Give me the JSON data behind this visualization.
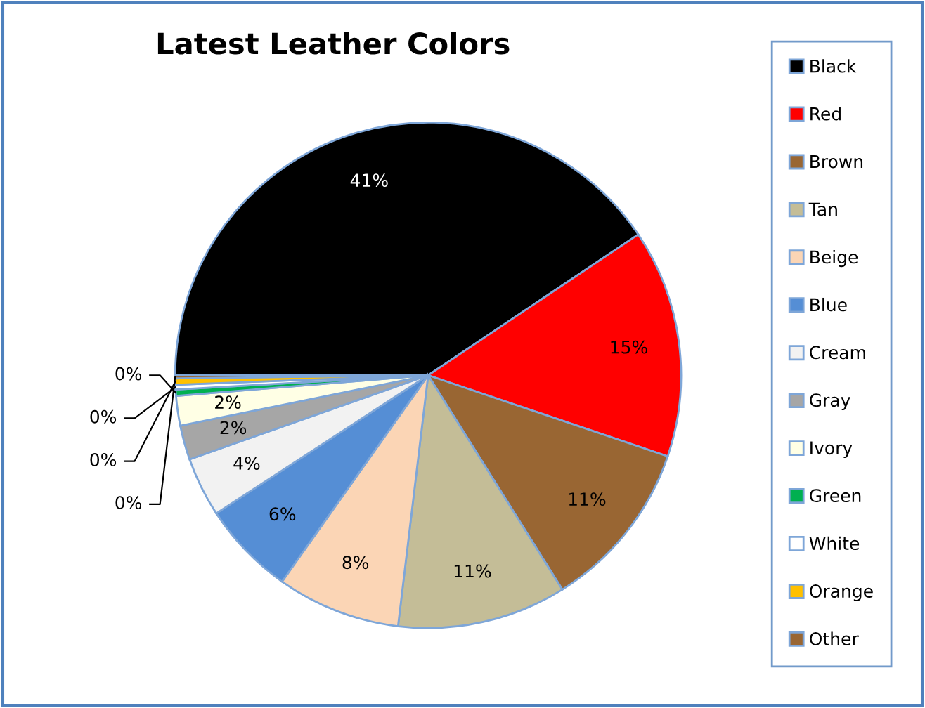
{
  "chart_data": {
    "type": "pie",
    "title": "Latest Leather Colors",
    "categories": [
      "Black",
      "Red",
      "Brown",
      "Tan",
      "Beige",
      "Blue",
      "Cream",
      "Gray",
      "Ivory",
      "Green",
      "White",
      "Orange",
      "Other"
    ],
    "values": [
      40.6,
      14.6,
      10.9,
      10.8,
      7.9,
      6.0,
      3.8,
      2.2,
      1.9,
      0.4,
      0.3,
      0.4,
      0.2
    ],
    "value_labels": [
      "41%",
      "15%",
      "11%",
      "11%",
      "8%",
      "6%",
      "4%",
      "2%",
      "2%",
      "0%",
      "0%",
      "0%",
      "0%"
    ],
    "colors": [
      "#000000",
      "#ff0000",
      "#996633",
      "#c4bd97",
      "#fbd5b5",
      "#558ed5",
      "#f2f2f2",
      "#a6a6a6",
      "#ffffe5",
      "#00b050",
      "#ffffff",
      "#ffc000",
      "#996633"
    ],
    "legend": "right"
  }
}
